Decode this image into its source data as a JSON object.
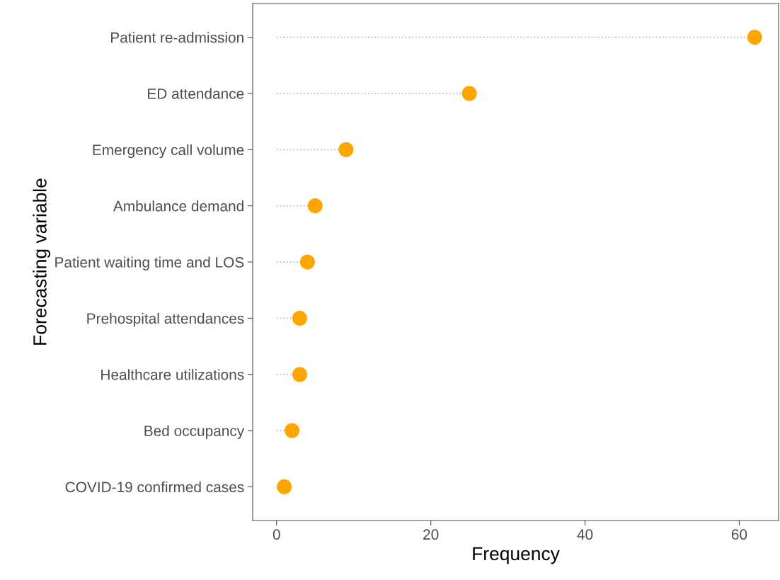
{
  "chart_data": {
    "type": "lollipop",
    "orientation": "horizontal",
    "xlabel": "Frequency",
    "ylabel": "Forecasting variable",
    "categories": [
      "Patient re-admission",
      "ED attendance",
      "Emergency call volume",
      "Ambulance demand",
      "Patient waiting time and LOS",
      "Prehospital attendances",
      "Healthcare utilizations",
      "Bed occupancy",
      "COVID-19 confirmed cases"
    ],
    "values": [
      62,
      25,
      9,
      5,
      4,
      3,
      3,
      2,
      1
    ],
    "color": "#ffa500",
    "marker": "circle",
    "line_style": "dotted",
    "grid": false,
    "legend": false,
    "xlim": [
      -3.1,
      65.1
    ],
    "xticks": [
      0,
      20,
      40,
      60
    ]
  }
}
